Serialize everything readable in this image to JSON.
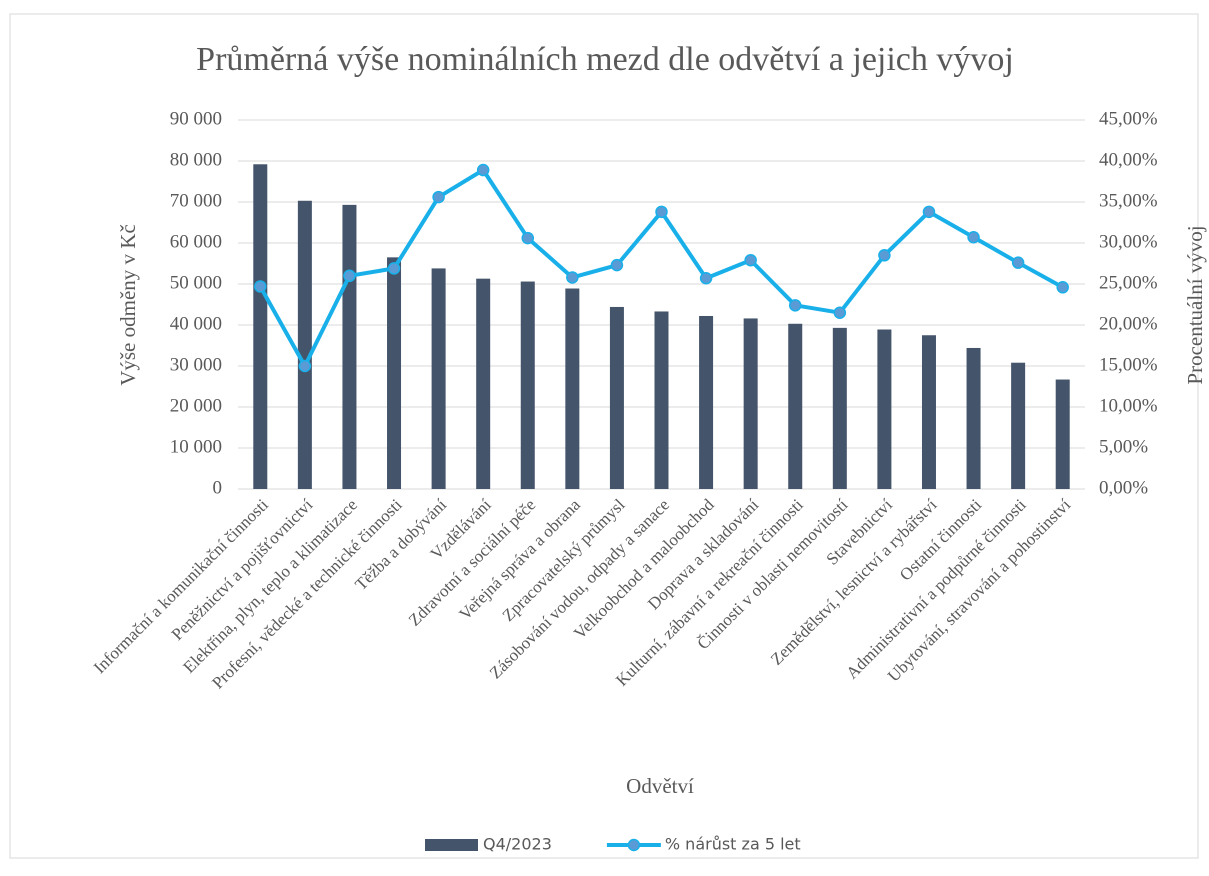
{
  "chart_data": {
    "type": "bar_line",
    "title": "Průměrná výše nominálních mezd dle odvětví a jejich vývoj",
    "xlabel": "Odvětví",
    "ylabel": "Výše odměny v Kč",
    "y2label": "Procentuální vývoj",
    "categories": [
      "Informační a komunikační činnosti",
      "Peněžnictví a pojišťovnictví",
      "Elektřina, plyn, teplo a klimatizace",
      "Profesní, vědecké a technické činnosti",
      "Těžba a dobývání",
      "Vzdělávání",
      "Zdravotní a sociální péče",
      "Veřejná správa a obrana",
      "Zpracovatelský průmysl",
      "Zásobování vodou, odpady a sanace",
      "Velkoobchod a maloobchod",
      "Doprava a skladování",
      "Kulturní, zábavní a rekreační činnosti",
      "Činnosti v oblasti nemovitostí",
      "Stavebnictví",
      "Zemědělství, lesnictví a rybářství",
      "Ostatní činnosti",
      "Administrativní a podpůrné činnosti",
      "Ubytování, stravování a pohostinství"
    ],
    "series": [
      {
        "name": "Q4/2023",
        "type": "bar",
        "color": "#44546a",
        "values": [
          79200,
          70300,
          69300,
          56500,
          53800,
          51300,
          50600,
          48900,
          44400,
          43300,
          42200,
          41600,
          40300,
          39300,
          38900,
          37500,
          34400,
          30800,
          26700
        ]
      },
      {
        "name": "% nárůst za 5 let",
        "type": "line",
        "axis": "y2",
        "color": "#19b0ea",
        "marker_color": "#5b9bd5",
        "values": [
          24.7,
          15.0,
          26.0,
          26.9,
          35.6,
          38.9,
          30.6,
          25.8,
          27.3,
          33.8,
          25.7,
          27.9,
          22.4,
          21.5,
          28.5,
          33.8,
          30.7,
          27.6,
          24.6
        ]
      }
    ],
    "ylim": [
      0,
      90000
    ],
    "yticks": [
      0,
      {
        "value": 10000,
        "label": "10 000"
      },
      {
        "value": 20000,
        "label": "20 000"
      },
      {
        "value": 30000,
        "label": "30 000"
      },
      {
        "value": 40000,
        "label": "40 000"
      },
      {
        "value": 50000,
        "label": "50 000"
      },
      {
        "value": 60000,
        "label": "60 000"
      },
      {
        "value": 70000,
        "label": "70 000"
      },
      {
        "value": 80000,
        "label": "80 000"
      },
      {
        "value": 90000,
        "label": "90 000"
      }
    ],
    "y2lim": [
      0,
      45
    ],
    "y2ticks": [
      {
        "value": 0,
        "label": "0,00%"
      },
      {
        "value": 5,
        "label": "5,00%"
      },
      {
        "value": 10,
        "label": "10,00%"
      },
      {
        "value": 15,
        "label": "15,00%"
      },
      {
        "value": 20,
        "label": "20,00%"
      },
      {
        "value": 25,
        "label": "25,00%"
      },
      {
        "value": 30,
        "label": "30,00%"
      },
      {
        "value": 35,
        "label": "35,00%"
      },
      {
        "value": 40,
        "label": "40,00%"
      },
      {
        "value": 45,
        "label": "45,00%"
      }
    ],
    "grid": true,
    "legend": "bottom"
  }
}
